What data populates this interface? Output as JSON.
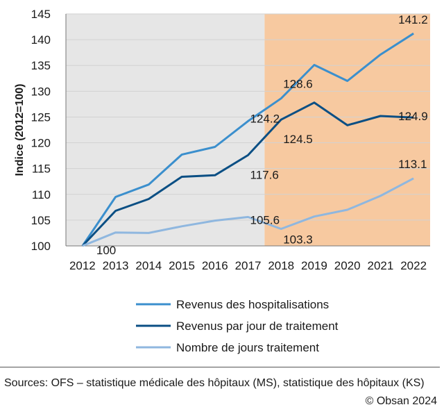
{
  "chart_data": {
    "type": "line",
    "ylabel": "Indice (2012=100)",
    "ylim": [
      100,
      145
    ],
    "yticks": [
      100,
      105,
      110,
      115,
      120,
      125,
      130,
      135,
      140,
      145
    ],
    "categories": [
      "2012",
      "2013",
      "2014",
      "2015",
      "2016",
      "2017",
      "2018",
      "2019",
      "2020",
      "2021",
      "2022"
    ],
    "shaded_regions": [
      {
        "from": "2012",
        "to": "2017",
        "color": "#e6e6e6"
      },
      {
        "from": "2018",
        "to": "2022",
        "color": "#f7c9a0"
      }
    ],
    "series": [
      {
        "name": "Revenus des hospitalisations",
        "color": "#3b8fcd",
        "values": [
          100,
          109.5,
          111.9,
          117.7,
          119.2,
          124.2,
          128.6,
          135.1,
          132.0,
          137.1,
          141.2
        ]
      },
      {
        "name": "Revenus par jour de traitement",
        "color": "#0b4f84",
        "values": [
          100,
          106.8,
          109.1,
          113.4,
          113.7,
          117.6,
          124.5,
          127.8,
          123.4,
          125.2,
          124.9
        ]
      },
      {
        "name": "Nombre de jours traitement",
        "color": "#8fb7df",
        "values": [
          100,
          102.6,
          102.5,
          103.8,
          104.9,
          105.6,
          103.3,
          105.7,
          107.0,
          109.7,
          113.1
        ]
      }
    ],
    "data_labels": [
      {
        "text": "100",
        "category": "2012",
        "value": 100
      },
      {
        "text": "124.2",
        "category": "2017",
        "value": 124.2
      },
      {
        "text": "117.6",
        "category": "2017",
        "value": 117.6
      },
      {
        "text": "105.6",
        "category": "2017",
        "value": 105.6
      },
      {
        "text": "128.6",
        "category": "2018",
        "value": 128.6
      },
      {
        "text": "124.5",
        "category": "2018",
        "value": 124.5
      },
      {
        "text": "103.3",
        "category": "2018",
        "value": 103.3
      },
      {
        "text": "141.2",
        "category": "2022",
        "value": 141.2
      },
      {
        "text": "124.9",
        "category": "2022",
        "value": 124.9
      },
      {
        "text": "113.1",
        "category": "2022",
        "value": 113.1
      }
    ]
  },
  "footer": {
    "sources": "Sources: OFS – statistique médicale des hôpitaux (MS), statistique des hôpitaux (KS)",
    "copyright": "© Obsan 2024"
  }
}
